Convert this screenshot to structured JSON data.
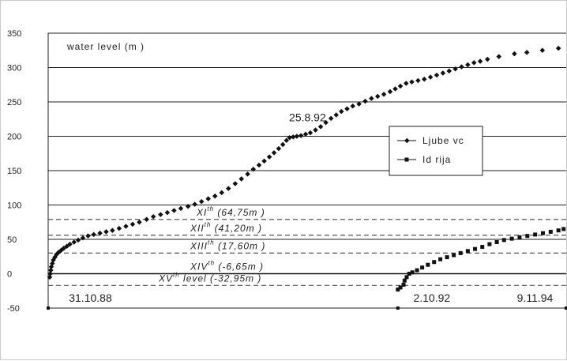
{
  "chart_data": {
    "type": "scatter",
    "ylabel": "water level (m )",
    "ylim": [
      -50,
      350
    ],
    "y_ticks": [
      350,
      300,
      250,
      200,
      150,
      100,
      50,
      0,
      -50
    ],
    "grid": true,
    "legend_position": "right",
    "series": [
      {
        "name": "Ljube vc",
        "marker": "diamond",
        "color": "#111111",
        "points": [
          [
            0.003,
            -5
          ],
          [
            0.004,
            0
          ],
          [
            0.005,
            5
          ],
          [
            0.006,
            10
          ],
          [
            0.008,
            15
          ],
          [
            0.01,
            20
          ],
          [
            0.013,
            24
          ],
          [
            0.016,
            28
          ],
          [
            0.02,
            31
          ],
          [
            0.025,
            34
          ],
          [
            0.03,
            37
          ],
          [
            0.036,
            40
          ],
          [
            0.042,
            43
          ],
          [
            0.05,
            46
          ],
          [
            0.058,
            49
          ],
          [
            0.067,
            52
          ],
          [
            0.077,
            55
          ],
          [
            0.088,
            57
          ],
          [
            0.1,
            59
          ],
          [
            0.112,
            61
          ],
          [
            0.124,
            63
          ],
          [
            0.137,
            66
          ],
          [
            0.15,
            69
          ],
          [
            0.163,
            72
          ],
          [
            0.176,
            75
          ],
          [
            0.19,
            79
          ],
          [
            0.203,
            83
          ],
          [
            0.217,
            86
          ],
          [
            0.23,
            89
          ],
          [
            0.243,
            92
          ],
          [
            0.256,
            95
          ],
          [
            0.27,
            98
          ],
          [
            0.283,
            101
          ],
          [
            0.296,
            105
          ],
          [
            0.309,
            109
          ],
          [
            0.322,
            113
          ],
          [
            0.335,
            118
          ],
          [
            0.348,
            124
          ],
          [
            0.361,
            131
          ],
          [
            0.373,
            138
          ],
          [
            0.385,
            145
          ],
          [
            0.396,
            152
          ],
          [
            0.407,
            158
          ],
          [
            0.417,
            164
          ],
          [
            0.427,
            170
          ],
          [
            0.436,
            176
          ],
          [
            0.445,
            182
          ],
          [
            0.453,
            188
          ],
          [
            0.46,
            194
          ],
          [
            0.466,
            198
          ],
          [
            0.473,
            199
          ],
          [
            0.48,
            200
          ],
          [
            0.488,
            201
          ],
          [
            0.497,
            203
          ],
          [
            0.506,
            205
          ],
          [
            0.516,
            209
          ],
          [
            0.526,
            214
          ],
          [
            0.536,
            220
          ],
          [
            0.546,
            226
          ],
          [
            0.556,
            231
          ],
          [
            0.566,
            236
          ],
          [
            0.577,
            240
          ],
          [
            0.588,
            244
          ],
          [
            0.6,
            247
          ],
          [
            0.612,
            251
          ],
          [
            0.624,
            255
          ],
          [
            0.636,
            258
          ],
          [
            0.648,
            261
          ],
          [
            0.66,
            265
          ],
          [
            0.67,
            269
          ],
          [
            0.68,
            273
          ],
          [
            0.691,
            277
          ],
          [
            0.702,
            279
          ],
          [
            0.714,
            281
          ],
          [
            0.726,
            283
          ],
          [
            0.738,
            286
          ],
          [
            0.75,
            289
          ],
          [
            0.762,
            292
          ],
          [
            0.774,
            295
          ],
          [
            0.786,
            298
          ],
          [
            0.798,
            301
          ],
          [
            0.81,
            304
          ],
          [
            0.822,
            307
          ],
          [
            0.834,
            309
          ],
          [
            0.848,
            312
          ],
          [
            0.87,
            316
          ],
          [
            0.9,
            320
          ],
          [
            0.924,
            322
          ],
          [
            0.954,
            325
          ],
          [
            0.985,
            328
          ]
        ]
      },
      {
        "name": "Id rija",
        "marker": "square",
        "color": "#111111",
        "points": [
          [
            0.675,
            -23
          ],
          [
            0.68,
            -20
          ],
          [
            0.686,
            -16
          ],
          [
            0.688,
            -10
          ],
          [
            0.692,
            -5
          ],
          [
            0.697,
            0
          ],
          [
            0.703,
            2
          ],
          [
            0.712,
            5
          ],
          [
            0.722,
            9
          ],
          [
            0.733,
            13
          ],
          [
            0.745,
            17
          ],
          [
            0.757,
            21
          ],
          [
            0.77,
            24
          ],
          [
            0.783,
            27
          ],
          [
            0.796,
            30
          ],
          [
            0.81,
            33
          ],
          [
            0.824,
            36
          ],
          [
            0.838,
            39
          ],
          [
            0.852,
            43
          ],
          [
            0.866,
            46
          ],
          [
            0.88,
            49
          ],
          [
            0.895,
            51
          ],
          [
            0.91,
            53
          ],
          [
            0.925,
            55
          ],
          [
            0.94,
            57
          ],
          [
            0.955,
            59
          ],
          [
            0.97,
            61
          ],
          [
            0.985,
            63
          ],
          [
            0.995,
            65
          ]
        ]
      }
    ],
    "reference_lines": [
      {
        "value": 79,
        "label": "XI",
        "suffix": "(64,75m )",
        "style": "dashed"
      },
      {
        "value": 56,
        "label": "XII",
        "suffix": "(41,20m )",
        "style": "dashed"
      },
      {
        "value": 30,
        "label": "XIII",
        "suffix": "(17,60m )",
        "style": "dashed"
      },
      {
        "value": 0,
        "label": "XIV",
        "suffix": "(-6,65m )",
        "style": "solid"
      },
      {
        "value": -17,
        "label": "XV",
        "suffix": "level (-32,95m )",
        "style": "dashed"
      }
    ],
    "level_superscript": "th",
    "annotations": [
      {
        "text": "25.8.92",
        "x": 0.465,
        "y": 222
      },
      {
        "text": "31.10.88",
        "x": 0.04,
        "y": -41
      },
      {
        "text": "2.10.92",
        "x": 0.705,
        "y": -41
      },
      {
        "text": "9.11.94",
        "x": 0.905,
        "y": -41
      }
    ],
    "x_markers": [
      0.0,
      0.675,
      1.0
    ]
  }
}
